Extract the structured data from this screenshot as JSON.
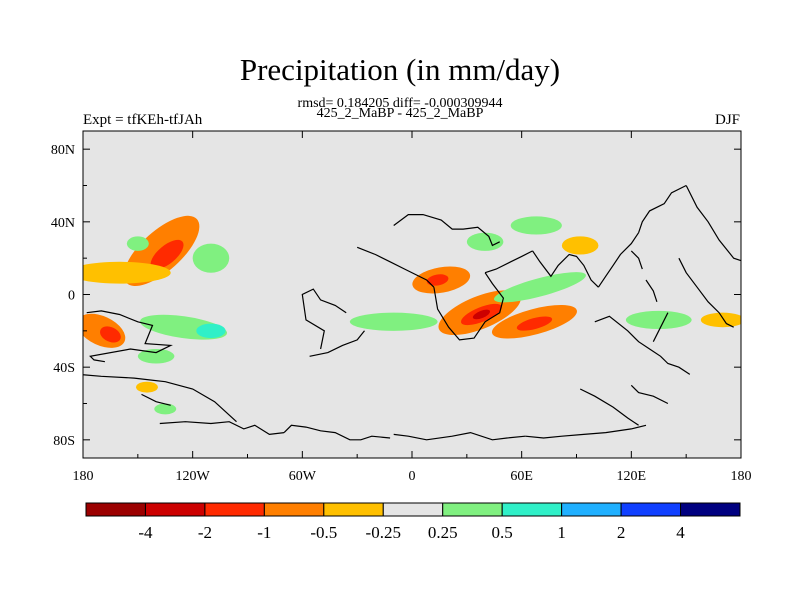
{
  "title": "Precipitation (in mm/day)",
  "stats_line": "rmsd= 0.184205 diff= -0.000309944",
  "case_line": "425_2_MaBP - 425_2_MaBP",
  "left_label": "Expt = tfKEh-tfJAh",
  "right_label": "DJF",
  "chart_data": {
    "type": "heatmap",
    "title": "Precipitation (in mm/day)",
    "xlim": [
      -180,
      180
    ],
    "ylim": [
      -90,
      90
    ],
    "x_ticks": [
      {
        "value": -180,
        "label": "180"
      },
      {
        "value": -120,
        "label": "120W"
      },
      {
        "value": -60,
        "label": "60W"
      },
      {
        "value": 0,
        "label": "0"
      },
      {
        "value": 60,
        "label": "60E"
      },
      {
        "value": 120,
        "label": "120E"
      },
      {
        "value": 180,
        "label": "180"
      }
    ],
    "y_ticks": [
      {
        "value": 80,
        "label": "80N"
      },
      {
        "value": 40,
        "label": "40N"
      },
      {
        "value": 0,
        "label": "0"
      },
      {
        "value": -40,
        "label": "40S"
      },
      {
        "value": -80,
        "label": "80S"
      }
    ],
    "contour_levels": [
      "-4",
      "-2",
      "-1",
      "-0.5",
      "-0.25",
      "0.25",
      "0.5",
      "1",
      "2",
      "4"
    ],
    "colors": {
      "neutral": "#e5e5e5",
      "dry_scale": [
        "#9b0000",
        "#cc0000",
        "#ff2a00",
        "#ff7f00",
        "#ffc000"
      ],
      "wet_scale": [
        "#80f080",
        "#30f0c8",
        "#20b0ff",
        "#1040ff",
        "#000080"
      ],
      "colorbar": [
        "#9b0000",
        "#cc0000",
        "#ff2a00",
        "#ff7f00",
        "#ffc000",
        "#e5e5e5",
        "#80f080",
        "#30f0c8",
        "#20b0ff",
        "#1040ff",
        "#000080"
      ]
    },
    "anomalies": [
      {
        "lon": -137,
        "lat": 24,
        "w": 26,
        "h": 11,
        "rot": -42,
        "level": -0.5
      },
      {
        "lon": -134,
        "lat": 22,
        "w": 11,
        "h": 5,
        "rot": -40,
        "level": -1
      },
      {
        "lon": -160,
        "lat": 12,
        "w": 28,
        "h": 6,
        "rot": 0,
        "level": -0.3
      },
      {
        "lon": -170,
        "lat": -20,
        "w": 14,
        "h": 8,
        "rot": 25,
        "level": -0.5
      },
      {
        "lon": -165,
        "lat": -22,
        "w": 6,
        "h": 4,
        "rot": 25,
        "level": -1
      },
      {
        "lon": -145,
        "lat": -51,
        "w": 6,
        "h": 3,
        "rot": 0,
        "level": -0.3
      },
      {
        "lon": -150,
        "lat": 28,
        "w": 6,
        "h": 4,
        "rot": 0,
        "level": 0.3
      },
      {
        "lon": -110,
        "lat": 20,
        "w": 10,
        "h": 8,
        "rot": 0,
        "level": 0.3
      },
      {
        "lon": -125,
        "lat": -18,
        "w": 24,
        "h": 6,
        "rot": 8,
        "level": 0.3
      },
      {
        "lon": -110,
        "lat": -20,
        "w": 8,
        "h": 4,
        "rot": 0,
        "level": 0.7
      },
      {
        "lon": -140,
        "lat": -34,
        "w": 10,
        "h": 4,
        "rot": 0,
        "level": 0.3
      },
      {
        "lon": -135,
        "lat": -63,
        "w": 6,
        "h": 3,
        "rot": 0,
        "level": 0.3
      },
      {
        "lon": 16,
        "lat": 8,
        "w": 16,
        "h": 7,
        "rot": -10,
        "level": -0.5
      },
      {
        "lon": 14,
        "lat": 8,
        "w": 6,
        "h": 3,
        "rot": -10,
        "level": -1
      },
      {
        "lon": 37,
        "lat": -10,
        "w": 24,
        "h": 9,
        "rot": -22,
        "level": -0.5
      },
      {
        "lon": 38,
        "lat": -11,
        "w": 12,
        "h": 4,
        "rot": -22,
        "level": -1
      },
      {
        "lon": 38,
        "lat": -11,
        "w": 5,
        "h": 2,
        "rot": -22,
        "level": -2
      },
      {
        "lon": 67,
        "lat": -15,
        "w": 24,
        "h": 7,
        "rot": -15,
        "level": -0.5
      },
      {
        "lon": 67,
        "lat": -16,
        "w": 10,
        "h": 3,
        "rot": -15,
        "level": -1
      },
      {
        "lon": 92,
        "lat": 27,
        "w": 10,
        "h": 5,
        "rot": 0,
        "level": -0.3
      },
      {
        "lon": 170,
        "lat": -14,
        "w": 12,
        "h": 4,
        "rot": 0,
        "level": -0.3
      },
      {
        "lon": -10,
        "lat": -15,
        "w": 24,
        "h": 5,
        "rot": 0,
        "level": 0.3
      },
      {
        "lon": 40,
        "lat": 29,
        "w": 10,
        "h": 5,
        "rot": 0,
        "level": 0.3
      },
      {
        "lon": 68,
        "lat": 38,
        "w": 14,
        "h": 5,
        "rot": 0,
        "level": 0.3
      },
      {
        "lon": 70,
        "lat": 4,
        "w": 26,
        "h": 5,
        "rot": -15,
        "level": 0.3
      },
      {
        "lon": 135,
        "lat": -14,
        "w": 18,
        "h": 5,
        "rot": 0,
        "level": 0.3
      }
    ]
  },
  "coastlines": [
    [
      [
        -178,
        -10
      ],
      [
        -170,
        -9
      ],
      [
        -160,
        -11
      ],
      [
        -150,
        -15
      ],
      [
        -142,
        -17
      ],
      [
        -146,
        -27
      ],
      [
        -132,
        -28
      ],
      [
        -140,
        -32
      ],
      [
        -154,
        -30
      ],
      [
        -176,
        -34
      ],
      [
        -174,
        -36
      ],
      [
        -168,
        -37
      ]
    ],
    [
      [
        -148,
        -55
      ],
      [
        -140,
        -59
      ],
      [
        -132,
        -61
      ]
    ],
    [
      [
        -138,
        -71
      ],
      [
        -124,
        -70
      ],
      [
        -110,
        -71
      ],
      [
        -100,
        -70
      ],
      [
        -92,
        -74
      ],
      [
        -86,
        -72
      ],
      [
        -78,
        -77
      ],
      [
        -70,
        -76
      ]
    ],
    [
      [
        -70,
        -76
      ],
      [
        -66,
        -72
      ],
      [
        -58,
        -73
      ],
      [
        -50,
        -75
      ],
      [
        -42,
        -76
      ],
      [
        -34,
        -80
      ],
      [
        -28,
        -80
      ],
      [
        -22,
        -78
      ],
      [
        -12,
        -79
      ]
    ],
    [
      [
        -10,
        -77
      ],
      [
        -2,
        -78
      ],
      [
        8,
        -80
      ],
      [
        22,
        -78
      ],
      [
        32,
        -76
      ],
      [
        44,
        -80
      ],
      [
        52,
        -79
      ],
      [
        62,
        -78
      ]
    ],
    [
      [
        62,
        -78
      ],
      [
        72,
        -79
      ],
      [
        82,
        -78
      ],
      [
        94,
        -77
      ],
      [
        106,
        -76
      ],
      [
        120,
        -74
      ],
      [
        128,
        -72
      ]
    ],
    [
      [
        -182,
        -44
      ],
      [
        -170,
        -45
      ],
      [
        -152,
        -46
      ],
      [
        -135,
        -48
      ],
      [
        -120,
        -52
      ],
      [
        -108,
        -59
      ],
      [
        -96,
        -70
      ]
    ],
    [
      [
        -56,
        -34
      ],
      [
        -46,
        -32
      ],
      [
        -38,
        -28
      ],
      [
        -30,
        -25
      ],
      [
        -26,
        -20
      ]
    ],
    [
      [
        -50,
        -30
      ],
      [
        -48,
        -20
      ],
      [
        -58,
        -14
      ],
      [
        -60,
        0
      ],
      [
        -54,
        3
      ],
      [
        -50,
        -3
      ],
      [
        -42,
        -6
      ],
      [
        -36,
        -10
      ]
    ],
    [
      [
        -10,
        38
      ],
      [
        -2,
        44
      ],
      [
        6,
        44
      ],
      [
        16,
        41
      ],
      [
        22,
        36
      ],
      [
        28,
        36
      ],
      [
        36,
        37
      ],
      [
        42,
        32
      ],
      [
        44,
        27
      ],
      [
        48,
        29
      ]
    ],
    [
      [
        -30,
        26
      ],
      [
        -20,
        22
      ],
      [
        -12,
        18
      ],
      [
        -4,
        14
      ],
      [
        8,
        8
      ],
      [
        12,
        4
      ]
    ],
    [
      [
        12,
        4
      ],
      [
        14,
        -8
      ],
      [
        20,
        -18
      ],
      [
        26,
        -25
      ],
      [
        34,
        -24
      ],
      [
        40,
        -15
      ],
      [
        48,
        -10
      ],
      [
        50,
        -2
      ],
      [
        44,
        6
      ],
      [
        40,
        12
      ]
    ],
    [
      [
        40,
        12
      ],
      [
        46,
        14
      ],
      [
        54,
        18
      ],
      [
        60,
        21
      ],
      [
        66,
        24
      ]
    ],
    [
      [
        66,
        24
      ],
      [
        70,
        18
      ],
      [
        76,
        10
      ],
      [
        80,
        16
      ],
      [
        86,
        22
      ],
      [
        90,
        21
      ],
      [
        94,
        16
      ],
      [
        98,
        8
      ],
      [
        102,
        4
      ]
    ],
    [
      [
        102,
        4
      ],
      [
        106,
        10
      ],
      [
        110,
        16
      ],
      [
        114,
        22
      ],
      [
        120,
        28
      ],
      [
        124,
        34
      ]
    ],
    [
      [
        124,
        34
      ],
      [
        126,
        40
      ],
      [
        130,
        46
      ],
      [
        138,
        50
      ],
      [
        142,
        56
      ],
      [
        150,
        60
      ]
    ],
    [
      [
        150,
        60
      ],
      [
        156,
        48
      ],
      [
        162,
        40
      ],
      [
        168,
        30
      ],
      [
        176,
        20
      ],
      [
        182,
        18
      ]
    ],
    [
      [
        100,
        -15
      ],
      [
        108,
        -12
      ],
      [
        118,
        -20
      ],
      [
        124,
        -26
      ],
      [
        130,
        -30
      ],
      [
        136,
        -34
      ],
      [
        140,
        -38
      ],
      [
        146,
        -40
      ],
      [
        152,
        -44
      ]
    ],
    [
      [
        120,
        -50
      ],
      [
        124,
        -54
      ],
      [
        132,
        -56
      ],
      [
        140,
        -60
      ]
    ],
    [
      [
        92,
        -52
      ],
      [
        100,
        -56
      ],
      [
        110,
        -62
      ],
      [
        118,
        -68
      ],
      [
        124,
        -72
      ]
    ],
    [
      [
        132,
        -26
      ],
      [
        136,
        -18
      ],
      [
        140,
        -10
      ]
    ],
    [
      [
        120,
        24
      ],
      [
        124,
        20
      ],
      [
        126,
        14
      ]
    ],
    [
      [
        128,
        8
      ],
      [
        132,
        2
      ],
      [
        134,
        -4
      ]
    ],
    [
      [
        146,
        20
      ],
      [
        150,
        12
      ],
      [
        156,
        4
      ],
      [
        162,
        -4
      ],
      [
        168,
        -10
      ],
      [
        172,
        -16
      ],
      [
        176,
        -18
      ]
    ]
  ]
}
